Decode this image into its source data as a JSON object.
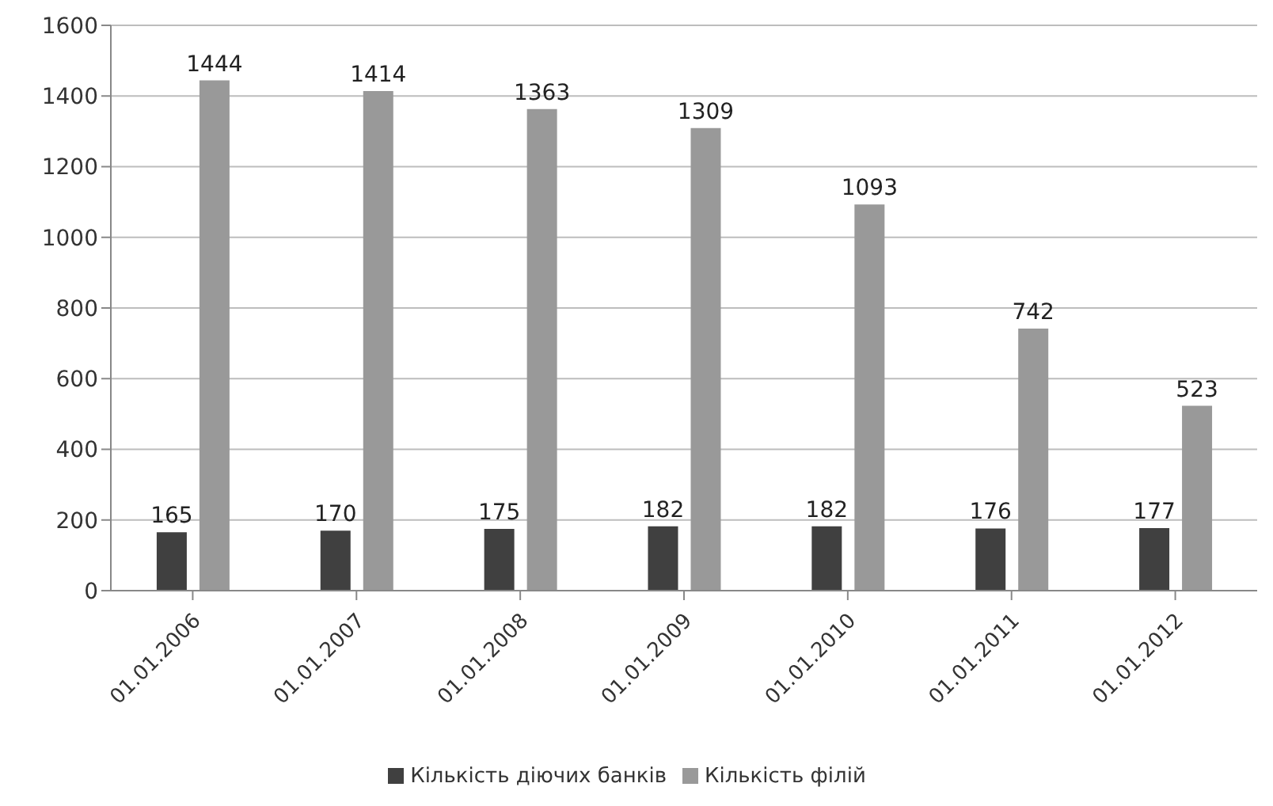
{
  "chart_data": {
    "type": "bar",
    "categories": [
      "01.01.2006",
      "01.01.2007",
      "01.01.2008",
      "01.01.2009",
      "01.01.2010",
      "01.01.2011",
      "01.01.2012"
    ],
    "series": [
      {
        "name": "Кількість діючих банків",
        "color": "#404040",
        "values": [
          165,
          170,
          175,
          182,
          182,
          176,
          177
        ]
      },
      {
        "name": "Кількість філій",
        "color": "#999999",
        "values": [
          1444,
          1414,
          1363,
          1309,
          1093,
          742,
          523
        ]
      }
    ],
    "ylim": [
      0,
      1600
    ],
    "yticks": [
      0,
      200,
      400,
      600,
      800,
      1000,
      1200,
      1400,
      1600
    ],
    "grid": "y",
    "legend": "bottom",
    "data_labels": true
  }
}
